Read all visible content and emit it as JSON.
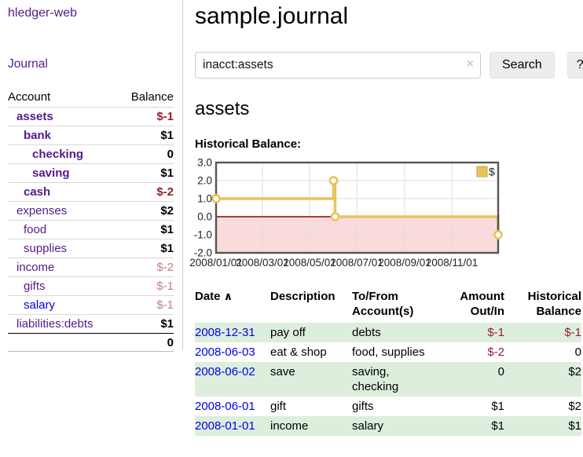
{
  "app": {
    "title": "hledger-web",
    "nav_journal": "Journal"
  },
  "icons": {
    "sort_asc": "∧",
    "clear": "×"
  },
  "colors": {
    "link_purple": "#551a8b",
    "link_blue": "#0000ee",
    "negative": "#8f222c",
    "negative_muted": "#c4807f",
    "row_green": "#ddeedd",
    "chart_line": "#e7c35c",
    "chart_negative_bg": "#fadada",
    "chart_zero_line": "#8b0000"
  },
  "sidebar": {
    "headers": {
      "account": "Account",
      "balance": "Balance"
    },
    "accounts": [
      {
        "name": "assets",
        "balance": "$-1"
      },
      {
        "name": "bank",
        "balance": "$1"
      },
      {
        "name": "checking",
        "balance": "0"
      },
      {
        "name": "saving",
        "balance": "$1"
      },
      {
        "name": "cash",
        "balance": "$-2"
      },
      {
        "name": "expenses",
        "balance": "$2"
      },
      {
        "name": "food",
        "balance": "$1"
      },
      {
        "name": "supplies",
        "balance": "$1"
      },
      {
        "name": "income",
        "balance": "$-2"
      },
      {
        "name": "gifts",
        "balance": "$-1"
      },
      {
        "name": "salary",
        "balance": "$-1"
      },
      {
        "name": "liabilities:debts",
        "balance": "$1"
      }
    ],
    "total": "0"
  },
  "main": {
    "title": "sample.journal",
    "search": {
      "value": "inacct:assets",
      "button": "Search",
      "help": "?"
    },
    "account_heading": "assets",
    "chart_label": "Historical Balance:"
  },
  "chart_data": {
    "type": "line",
    "subtype": "step-with-markers",
    "title": "Historical Balance",
    "legend": "$",
    "legend_position": "top-right-inside",
    "ylim": [
      -2,
      3
    ],
    "y_ticks": [
      "3.0",
      "2.0",
      "1.0",
      "0.0",
      "-1.0",
      "-2.0"
    ],
    "y_gridlines": [
      2,
      1,
      -1
    ],
    "x_ticks": [
      "2008/01/01",
      "2008/03/01",
      "2008/05/01",
      "2008/07/01",
      "2008/09/01",
      "2008/11/01"
    ],
    "x_range": [
      "2008-01-01",
      "2008-12-31"
    ],
    "points": [
      {
        "date": "2008-01-01",
        "value": 1
      },
      {
        "date": "2008-06-01",
        "value": 2
      },
      {
        "date": "2008-06-03",
        "value": 0
      },
      {
        "date": "2008-12-31",
        "value": -1
      }
    ],
    "negative_region_shaded": true
  },
  "register": {
    "headers": {
      "date": "Date",
      "description": "Description",
      "tofrom": "To/From\nAccount(s)",
      "amount": "Amount\nOut/In",
      "historical": "Historical\nBalance"
    },
    "rows": [
      {
        "date": "2008-12-31",
        "description": "pay off",
        "tofrom": "debts",
        "amount": "$-1",
        "historical": "$-1"
      },
      {
        "date": "2008-06-03",
        "description": "eat & shop",
        "tofrom": "food, supplies",
        "amount": "$-2",
        "historical": "0"
      },
      {
        "date": "2008-06-02",
        "description": "save",
        "tofrom": "saving,\nchecking",
        "amount": "0",
        "historical": "$2"
      },
      {
        "date": "2008-06-01",
        "description": "gift",
        "tofrom": "gifts",
        "amount": "$1",
        "historical": "$2"
      },
      {
        "date": "2008-01-01",
        "description": "income",
        "tofrom": "salary",
        "amount": "$1",
        "historical": "$1"
      }
    ]
  }
}
